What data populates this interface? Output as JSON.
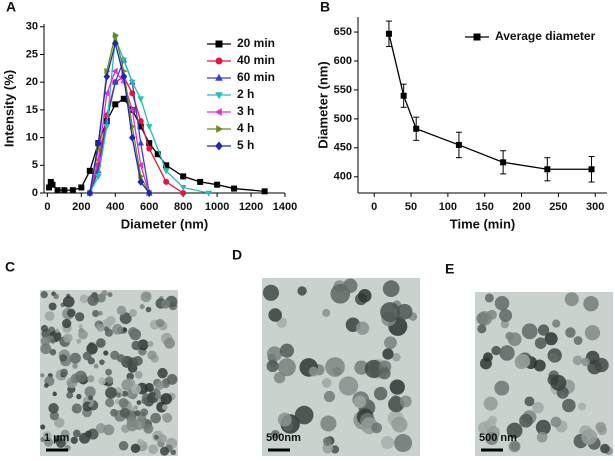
{
  "chart_data": [
    {
      "type": "line",
      "label": "A",
      "x_label": "Diameter (nm)",
      "y_label": "Intensity (%)",
      "xlim": [
        -20,
        1400
      ],
      "xticks": [
        0,
        200,
        400,
        600,
        800,
        1000,
        1200,
        1400
      ],
      "ylim": [
        0,
        30.5
      ],
      "yticks": [
        0,
        5,
        10,
        15,
        20,
        25,
        30
      ],
      "legend": "upper right",
      "series": [
        {
          "name": "20 min",
          "color": "#000000",
          "marker": "square",
          "x": [
            10,
            20,
            30,
            60,
            100,
            150,
            200,
            250,
            300,
            350,
            400,
            450,
            500,
            550,
            600,
            650,
            700,
            800,
            900,
            1000,
            1100,
            1280
          ],
          "values": [
            1,
            2,
            1.5,
            0.5,
            0.5,
            0.5,
            1,
            4,
            9,
            13,
            16,
            17,
            15,
            12,
            9,
            7,
            5,
            3,
            2,
            1.5,
            0.8,
            0.3
          ]
        },
        {
          "name": "40 min",
          "color": "#e8123c",
          "marker": "circle",
          "x": [
            250,
            300,
            350,
            400,
            450,
            500,
            550,
            600,
            700,
            800
          ],
          "values": [
            0,
            5,
            14,
            20,
            21,
            18,
            13,
            8,
            2,
            0
          ]
        },
        {
          "name": "60 min",
          "color": "#3a3fd0",
          "marker": "triangle-up",
          "x": [
            250,
            300,
            350,
            400,
            450,
            500,
            550,
            600
          ],
          "values": [
            0,
            4,
            13,
            20,
            24,
            20,
            9,
            0
          ]
        },
        {
          "name": "2 h",
          "color": "#20c0b8",
          "marker": "triangle-down",
          "x": [
            250,
            300,
            350,
            400,
            450,
            500,
            550,
            600,
            700,
            800,
            950
          ],
          "values": [
            0,
            3,
            12,
            28,
            24,
            20,
            17,
            12,
            4,
            1,
            0
          ]
        },
        {
          "name": "3 h",
          "color": "#e030e0",
          "marker": "triangle-left",
          "x": [
            250,
            300,
            350,
            400,
            450,
            500,
            550,
            600
          ],
          "values": [
            0,
            6,
            18,
            22,
            20,
            15,
            5,
            0
          ]
        },
        {
          "name": "4 h",
          "color": "#6e8a1c",
          "marker": "triangle-right",
          "x": [
            250,
            300,
            350,
            400,
            450,
            500,
            550,
            600
          ],
          "values": [
            0,
            8,
            22,
            28.5,
            22,
            12,
            3,
            0
          ]
        },
        {
          "name": "5 h",
          "color": "#1a2ab0",
          "marker": "diamond",
          "x": [
            250,
            300,
            350,
            400,
            450,
            500,
            550,
            600
          ],
          "values": [
            0,
            9,
            21,
            27,
            21,
            10,
            2,
            0
          ]
        }
      ]
    },
    {
      "type": "line",
      "label": "B",
      "x_label": "Time (min)",
      "y_label": "Diameter (nm)",
      "xlim": [
        -22,
        316
      ],
      "xticks": [
        0,
        50,
        100,
        150,
        200,
        250,
        300
      ],
      "ylim": [
        372,
        676
      ],
      "yticks": [
        400,
        450,
        500,
        550,
        600,
        650
      ],
      "legend": "upper right",
      "series": [
        {
          "name": "Average diameter",
          "color": "#000000",
          "marker": "square",
          "x": [
            20,
            40,
            57,
            115,
            175,
            235,
            295
          ],
          "values": [
            647,
            540,
            483,
            455,
            425,
            413,
            413
          ],
          "errors": [
            22,
            20,
            20,
            22,
            20,
            20,
            22
          ]
        }
      ]
    }
  ],
  "images": [
    {
      "label": "C",
      "scale": "1 µm"
    },
    {
      "label": "D",
      "scale": "500nm"
    },
    {
      "label": "E",
      "scale": "500 nm"
    }
  ]
}
